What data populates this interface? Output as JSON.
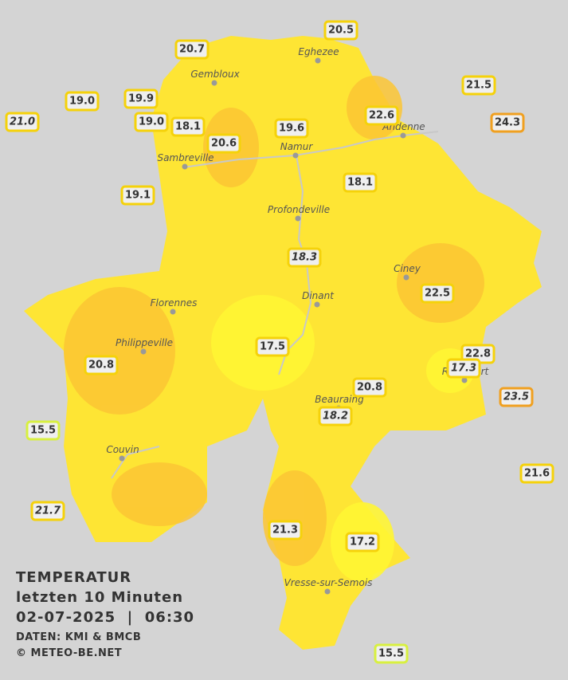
{
  "title": {
    "line1": "TEMPERATUR",
    "line2": "letzten 10 Minuten",
    "line3": "02-07-2025  |  06:30"
  },
  "source": "DATEN: KMI & BMCB",
  "copyright": "© METEO-BE.NET",
  "places": [
    "Eghezee",
    "Gembloux",
    "Andenne",
    "Namur",
    "Sambreville",
    "Profondeville",
    "Ciney",
    "Dinant",
    "Florennes",
    "Philippeville",
    "Rochefort",
    "Beauraing",
    "Couvin",
    "Vresse-sur-Semois"
  ],
  "stations": [
    "20.5",
    "20.7",
    "21.5",
    "19.0",
    "19.9",
    "22.6",
    "21.0",
    "19.0",
    "18.1",
    "19.6",
    "24.3",
    "20.6",
    "18.1",
    "19.1",
    "18.3",
    "22.5",
    "17.5",
    "22.8",
    "17.3",
    "20.8",
    "20.8",
    "23.5",
    "18.2",
    "15.5",
    "21.6",
    "21.7",
    "21.3",
    "17.2",
    "15.5"
  ]
}
